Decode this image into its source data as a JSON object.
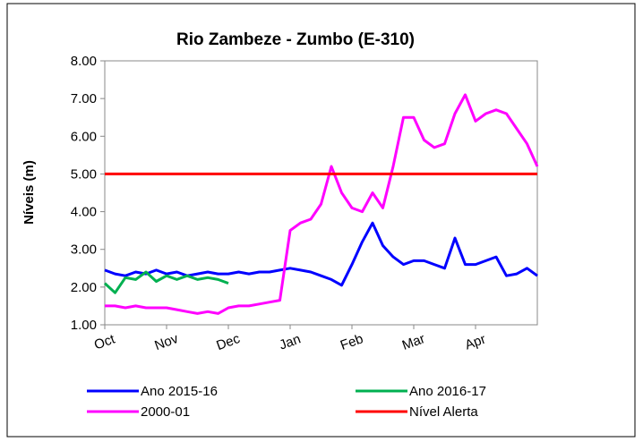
{
  "chart_data": {
    "type": "line",
    "title": "Rio Zambeze - Zumbo (E-310)",
    "y_label": "Níveis (m)",
    "categories": [
      "Oct",
      null,
      null,
      null,
      null,
      null,
      "Nov",
      null,
      null,
      null,
      null,
      null,
      "Dec",
      null,
      null,
      null,
      null,
      null,
      "Jan",
      null,
      null,
      null,
      null,
      null,
      "Feb",
      null,
      null,
      null,
      null,
      null,
      "Mar",
      null,
      null,
      null,
      null,
      null,
      "Apr",
      null,
      null,
      null,
      null,
      null,
      null
    ],
    "series": [
      {
        "name": "Ano 2015-16",
        "color": "#0000ff",
        "values": [
          2.45,
          2.35,
          2.3,
          2.4,
          2.35,
          2.45,
          2.35,
          2.4,
          2.3,
          2.35,
          2.4,
          2.35,
          2.35,
          2.4,
          2.35,
          2.4,
          2.4,
          2.45,
          2.5,
          2.45,
          2.4,
          2.3,
          2.2,
          2.05,
          2.6,
          3.2,
          3.7,
          3.1,
          2.8,
          2.6,
          2.7,
          2.7,
          2.6,
          2.5,
          3.3,
          2.6,
          2.6,
          2.7,
          2.8,
          2.3,
          2.35,
          2.5,
          2.3
        ]
      },
      {
        "name": "Ano 2016-17",
        "color": "#00b050",
        "values": [
          2.1,
          1.85,
          2.25,
          2.2,
          2.4,
          2.15,
          2.3,
          2.2,
          2.3,
          2.2,
          2.25,
          2.2,
          2.1,
          null,
          null,
          null,
          null,
          null,
          null,
          null,
          null,
          null,
          null,
          null,
          null,
          null,
          null,
          null,
          null,
          null,
          null,
          null,
          null,
          null,
          null,
          null,
          null,
          null,
          null,
          null,
          null,
          null,
          null
        ]
      },
      {
        "name": "2000-01",
        "color": "#ff00ff",
        "values": [
          1.5,
          1.5,
          1.45,
          1.5,
          1.45,
          1.45,
          1.45,
          1.4,
          1.35,
          1.3,
          1.35,
          1.3,
          1.45,
          1.5,
          1.5,
          1.55,
          1.6,
          1.65,
          3.5,
          3.7,
          3.8,
          4.2,
          5.2,
          4.5,
          4.1,
          4.0,
          4.5,
          4.1,
          5.2,
          6.5,
          6.5,
          5.9,
          5.7,
          5.8,
          6.6,
          7.1,
          6.4,
          6.6,
          6.7,
          6.6,
          6.2,
          5.8,
          5.2
        ]
      },
      {
        "name": "Nível Alerta",
        "color": "#ff0000",
        "values": [
          5,
          5,
          5,
          5,
          5,
          5,
          5,
          5,
          5,
          5,
          5,
          5,
          5,
          5,
          5,
          5,
          5,
          5,
          5,
          5,
          5,
          5,
          5,
          5,
          5,
          5,
          5,
          5,
          5,
          5,
          5,
          5,
          5,
          5,
          5,
          5,
          5,
          5,
          5,
          5,
          5,
          5,
          5
        ]
      }
    ],
    "ylim": [
      1,
      8
    ],
    "yticks": [
      {
        "value": 1,
        "label": "1.00"
      },
      {
        "value": 2,
        "label": "2.00"
      },
      {
        "value": 3,
        "label": "3.00"
      },
      {
        "value": 4,
        "label": "4.00"
      },
      {
        "value": 5,
        "label": "5.00"
      },
      {
        "value": 6,
        "label": "6.00"
      },
      {
        "value": 7,
        "label": "7.00"
      },
      {
        "value": 8,
        "label": "8.00"
      }
    ]
  }
}
